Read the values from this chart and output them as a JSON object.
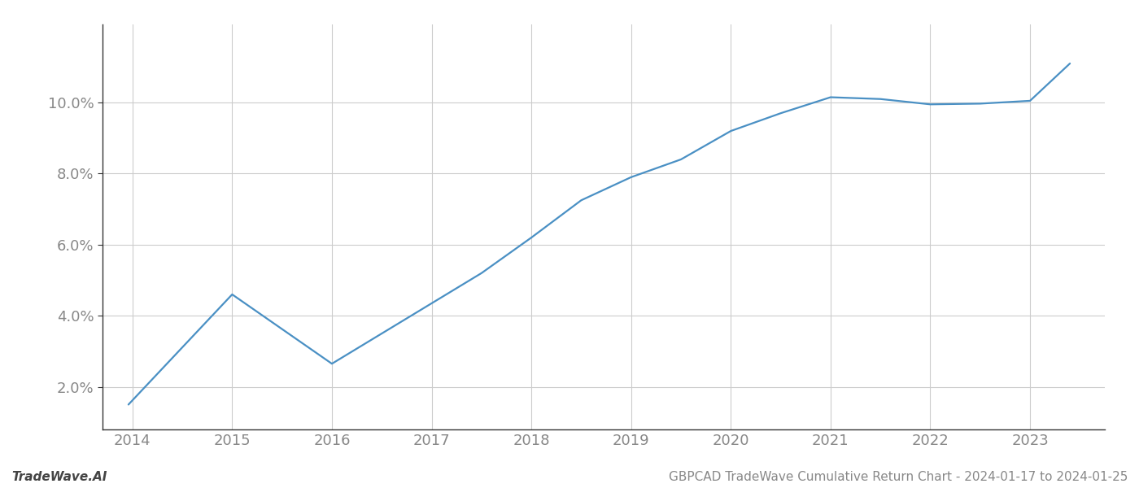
{
  "x_values": [
    2013.96,
    2015.0,
    2016.0,
    2017.5,
    2018.0,
    2018.5,
    2019.0,
    2019.5,
    2020.0,
    2020.5,
    2021.0,
    2021.5,
    2022.0,
    2022.5,
    2023.0,
    2023.4
  ],
  "y_values": [
    1.5,
    4.6,
    2.65,
    5.2,
    6.2,
    7.25,
    7.9,
    8.4,
    9.2,
    9.7,
    10.15,
    10.1,
    9.95,
    9.97,
    10.05,
    11.1
  ],
  "line_color": "#4a90c4",
  "line_width": 1.6,
  "background_color": "#ffffff",
  "grid_color": "#cccccc",
  "spine_color": "#333333",
  "tick_color": "#888888",
  "footer_left": "TradeWave.AI",
  "footer_right": "GBPCAD TradeWave Cumulative Return Chart - 2024-01-17 to 2024-01-25",
  "x_ticks": [
    2014,
    2015,
    2016,
    2017,
    2018,
    2019,
    2020,
    2021,
    2022,
    2023
  ],
  "y_ticks": [
    2.0,
    4.0,
    6.0,
    8.0,
    10.0
  ],
  "ylim": [
    0.8,
    12.2
  ],
  "xlim": [
    2013.7,
    2023.75
  ],
  "tick_fontsize": 13,
  "footer_fontsize": 11
}
